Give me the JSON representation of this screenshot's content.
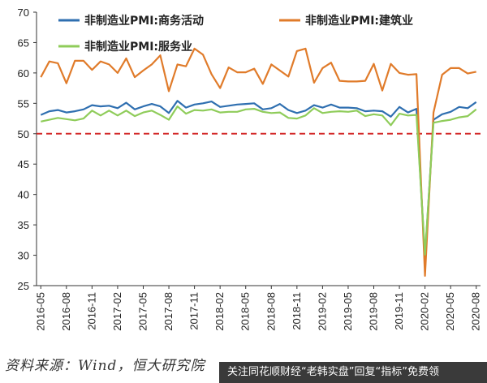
{
  "chart_data": {
    "type": "line",
    "ylim": [
      25,
      70
    ],
    "yticks": [
      25,
      30,
      35,
      40,
      45,
      50,
      55,
      60,
      65,
      70
    ],
    "reference_line": {
      "value": 50,
      "color": "#d42a2a",
      "style": "dashed"
    },
    "xtick_labels": [
      "2016-05",
      "2016-08",
      "2016-11",
      "2017-02",
      "2017-05",
      "2017-08",
      "2017-11",
      "2018-02",
      "2018-05",
      "2018-08",
      "2018-11",
      "2019-02",
      "2019-05",
      "2019-08",
      "2019-11",
      "2020-02",
      "2020-05",
      "2020-08"
    ],
    "x": [
      "2016-05",
      "2016-06",
      "2016-07",
      "2016-08",
      "2016-09",
      "2016-10",
      "2016-11",
      "2016-12",
      "2017-01",
      "2017-02",
      "2017-03",
      "2017-04",
      "2017-05",
      "2017-06",
      "2017-07",
      "2017-08",
      "2017-09",
      "2017-10",
      "2017-11",
      "2017-12",
      "2018-01",
      "2018-02",
      "2018-03",
      "2018-04",
      "2018-05",
      "2018-06",
      "2018-07",
      "2018-08",
      "2018-09",
      "2018-10",
      "2018-11",
      "2018-12",
      "2019-01",
      "2019-02",
      "2019-03",
      "2019-04",
      "2019-05",
      "2019-06",
      "2019-07",
      "2019-08",
      "2019-09",
      "2019-10",
      "2019-11",
      "2019-12",
      "2020-01",
      "2020-02",
      "2020-03",
      "2020-04",
      "2020-05",
      "2020-06",
      "2020-07",
      "2020-08"
    ],
    "legend_position": "top-left",
    "grid": false,
    "series": [
      {
        "name": "非制造业PMI:商务活动",
        "color": "#2f6fb0",
        "values": [
          53.1,
          53.7,
          53.9,
          53.5,
          53.7,
          54.0,
          54.7,
          54.5,
          54.6,
          54.2,
          55.1,
          54.0,
          54.5,
          54.9,
          54.5,
          53.4,
          55.4,
          54.3,
          54.8,
          55.0,
          55.3,
          54.4,
          54.6,
          54.8,
          54.9,
          55.0,
          54.0,
          54.2,
          54.9,
          53.9,
          53.4,
          53.8,
          54.7,
          54.3,
          54.8,
          54.3,
          54.3,
          54.2,
          53.7,
          53.8,
          53.7,
          52.8,
          54.4,
          53.5,
          54.1,
          29.6,
          52.3,
          53.2,
          53.6,
          54.4,
          54.2,
          55.2
        ]
      },
      {
        "name": "非制造业PMI:建筑业",
        "color": "#e07b2a",
        "values": [
          59.3,
          61.9,
          61.6,
          58.3,
          62.0,
          62.0,
          60.5,
          61.9,
          61.4,
          60.0,
          62.4,
          59.3,
          60.4,
          61.4,
          62.9,
          57.0,
          61.4,
          61.1,
          64.0,
          63.0,
          59.8,
          57.5,
          60.9,
          60.1,
          60.1,
          60.7,
          58.2,
          61.4,
          60.4,
          59.4,
          63.6,
          64.0,
          58.4,
          60.8,
          61.7,
          58.7,
          58.6,
          58.6,
          58.7,
          61.5,
          57.1,
          61.5,
          60.0,
          59.7,
          59.8,
          26.6,
          53.5,
          59.7,
          60.8,
          60.8,
          59.9,
          60.2
        ]
      },
      {
        "name": "非制造业PMI:服务业",
        "color": "#8fcc5a",
        "values": [
          52.0,
          52.3,
          52.6,
          52.4,
          52.2,
          52.5,
          53.8,
          53.0,
          53.8,
          53.0,
          53.8,
          52.9,
          53.5,
          53.8,
          53.1,
          52.3,
          54.5,
          53.3,
          53.9,
          53.8,
          54.0,
          53.5,
          53.6,
          53.6,
          54.0,
          54.1,
          53.6,
          53.4,
          53.5,
          52.6,
          52.5,
          53.0,
          54.2,
          53.4,
          53.6,
          53.7,
          53.6,
          53.8,
          52.9,
          53.2,
          53.0,
          51.4,
          53.3,
          53.0,
          53.1,
          30.1,
          51.8,
          52.1,
          52.3,
          52.7,
          52.9,
          54.0
        ]
      }
    ]
  },
  "source_text": "资料来源：Wind，恒大研究院",
  "banner_text": "关注同花顺财经“老韩实盘”回复“指标”免费领"
}
